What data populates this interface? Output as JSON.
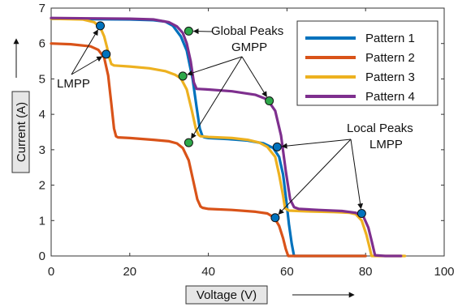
{
  "chart_data": {
    "type": "line",
    "title": "",
    "xlabel": "Voltage (V)",
    "ylabel": "Current (A)",
    "xlim": [
      0,
      100
    ],
    "ylim": [
      0,
      7
    ],
    "xticks": [
      0,
      20,
      40,
      60,
      80,
      100
    ],
    "yticks": [
      0,
      1,
      2,
      3,
      4,
      5,
      6,
      7
    ],
    "grid": false,
    "legend_position": "top-right",
    "series": [
      {
        "name": "Pattern 1",
        "color": "#0072BD",
        "x": [
          0,
          10,
          20,
          26,
          29,
          31,
          33,
          34.5,
          36,
          37,
          37.8,
          38.5,
          39,
          40,
          45,
          50,
          54,
          56.5,
          58,
          59,
          59.8,
          60.5,
          61.2,
          61.8,
          70,
          80
        ],
        "y": [
          6.7,
          6.69,
          6.68,
          6.66,
          6.62,
          6.5,
          6.2,
          5.8,
          5.0,
          4.2,
          3.6,
          3.38,
          3.35,
          3.33,
          3.3,
          3.26,
          3.18,
          3.05,
          2.8,
          2.3,
          1.6,
          0.9,
          0.35,
          0,
          0,
          0
        ]
      },
      {
        "name": "Pattern 2",
        "color": "#D95319",
        "x": [
          0,
          5,
          10,
          12,
          13.5,
          14.5,
          15.3,
          16,
          16.5,
          17,
          20,
          26,
          30,
          32,
          33.5,
          35,
          36.2,
          37.2,
          38,
          38.5,
          40,
          46,
          52,
          55,
          56.8,
          58,
          59,
          59.7,
          60.3,
          62,
          70,
          80
        ],
        "y": [
          6.0,
          5.98,
          5.92,
          5.82,
          5.6,
          5.1,
          4.3,
          3.6,
          3.38,
          3.35,
          3.33,
          3.28,
          3.24,
          3.18,
          3.05,
          2.7,
          2.1,
          1.6,
          1.4,
          1.36,
          1.33,
          1.3,
          1.25,
          1.2,
          1.08,
          0.85,
          0.5,
          0.2,
          0,
          0,
          0,
          0
        ]
      },
      {
        "name": "Pattern 3",
        "color": "#EDB120",
        "x": [
          0,
          8,
          11,
          12.5,
          13.5,
          14.2,
          14.8,
          15.3,
          16,
          20,
          25,
          29,
          31.5,
          33,
          34.5,
          35.8,
          36.8,
          37.5,
          38,
          40,
          46,
          50,
          53,
          55,
          57,
          58,
          59,
          59.5,
          60.5,
          65,
          72,
          76,
          77.5,
          79,
          80.2,
          81,
          81.5,
          85,
          90
        ],
        "y": [
          6.7,
          6.68,
          6.6,
          6.45,
          6.2,
          5.9,
          5.6,
          5.42,
          5.38,
          5.35,
          5.3,
          5.22,
          5.12,
          5.02,
          4.7,
          4.1,
          3.6,
          3.42,
          3.38,
          3.36,
          3.33,
          3.28,
          3.2,
          3.08,
          2.8,
          2.3,
          1.7,
          1.35,
          1.28,
          1.26,
          1.24,
          1.22,
          1.18,
          1.0,
          0.6,
          0.25,
          0,
          0,
          0
        ]
      },
      {
        "name": "Pattern 4",
        "color": "#7E2F8E",
        "x": [
          0,
          10,
          20,
          26,
          30,
          32,
          33.5,
          34.5,
          35.5,
          36.3,
          37,
          40,
          46,
          52,
          55,
          57,
          58.5,
          59.7,
          60.8,
          61.8,
          63,
          68,
          74,
          77.5,
          79.5,
          80.7,
          81.6,
          82.4,
          85,
          89
        ],
        "y": [
          6.72,
          6.71,
          6.7,
          6.68,
          6.6,
          6.48,
          6.3,
          6.0,
          5.5,
          4.9,
          4.72,
          4.7,
          4.65,
          4.55,
          4.42,
          4.1,
          3.4,
          2.4,
          1.6,
          1.38,
          1.33,
          1.3,
          1.27,
          1.22,
          1.1,
          0.8,
          0.4,
          0.02,
          0,
          0
        ]
      }
    ],
    "markers": [
      {
        "kind": "LMPP",
        "color": "#0072BD",
        "x": 12.5,
        "y": 6.5
      },
      {
        "kind": "LMPP",
        "color": "#0072BD",
        "x": 14.0,
        "y": 5.7
      },
      {
        "kind": "GMPP",
        "color": "#2EA84A",
        "x": 35.0,
        "y": 6.35
      },
      {
        "kind": "GMPP",
        "color": "#2EA84A",
        "x": 33.5,
        "y": 5.08
      },
      {
        "kind": "GMPP",
        "color": "#2EA84A",
        "x": 55.5,
        "y": 4.38
      },
      {
        "kind": "GMPP",
        "color": "#2EA84A",
        "x": 35.0,
        "y": 3.2
      },
      {
        "kind": "LMPP",
        "color": "#0072BD",
        "x": 57.5,
        "y": 3.08
      },
      {
        "kind": "LMPP",
        "color": "#0072BD",
        "x": 57.0,
        "y": 1.08
      },
      {
        "kind": "LMPP",
        "color": "#0072BD",
        "x": 79.0,
        "y": 1.2
      }
    ],
    "annotations": {
      "lmpp_left": "LMPP",
      "global_line1": "Global Peaks",
      "global_line2": "GMPP",
      "local_line1": "Local Peaks",
      "local_line2": "LMPP"
    }
  }
}
